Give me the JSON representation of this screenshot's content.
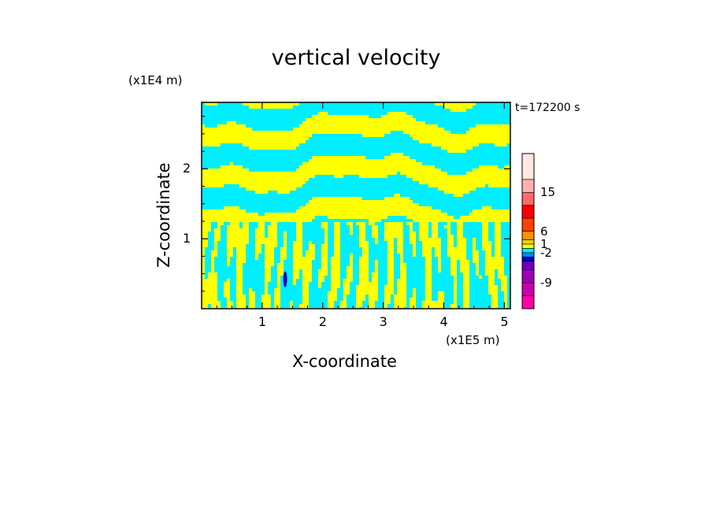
{
  "title": "vertical velocity",
  "z_unit": "(x1E4 m)",
  "x_unit": "(x1E5 m)",
  "time_label": "t=172200 s",
  "chart_data": {
    "type": "heatmap",
    "title": "vertical velocity",
    "xlabel": "X-coordinate",
    "ylabel": "Z-coordinate",
    "xlim": [
      0,
      5.1
    ],
    "ylim": [
      0,
      2.95
    ],
    "x_ticks": [
      "1",
      "2",
      "3",
      "4",
      "5"
    ],
    "y_ticks": [
      "1",
      "2"
    ],
    "colorbar": {
      "tick_labels": [
        "15",
        "6",
        "1",
        "-2",
        "-9"
      ],
      "tick_values": [
        15,
        6,
        1,
        -2,
        -9
      ],
      "levels": [
        {
          "color": "#ff00aa"
        },
        {
          "color": "#cc00aa"
        },
        {
          "color": "#a000b4"
        },
        {
          "color": "#6a00b8"
        },
        {
          "color": "#0000cc"
        },
        {
          "color": "#0088ff"
        },
        {
          "color": "#00eeff"
        },
        {
          "color": "#ffff00"
        },
        {
          "color": "#ffd000"
        },
        {
          "color": "#ff9000"
        },
        {
          "color": "#ff4000"
        },
        {
          "color": "#ff0000"
        },
        {
          "color": "#ff6a6a"
        },
        {
          "color": "#ffb0b0"
        },
        {
          "color": "#ffe8e0"
        }
      ]
    },
    "field_colors": {
      "positive": "#ffff00",
      "negative": "#00eeff",
      "strong_negative": "#0000cc"
    }
  }
}
